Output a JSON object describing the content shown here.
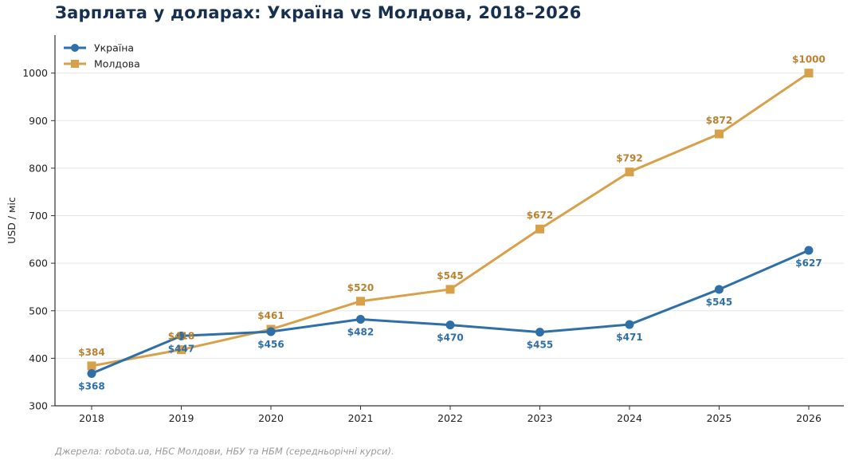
{
  "chart_data": {
    "type": "line",
    "title": "Зарплата у доларах: Україна vs Молдова, 2018–2026",
    "ylabel": "USD / міс",
    "xlabel": "",
    "categories": [
      "2018",
      "2019",
      "2020",
      "2021",
      "2022",
      "2023",
      "2024",
      "2025",
      "2026"
    ],
    "ylim": [
      300,
      1080
    ],
    "yticks": [
      300,
      400,
      500,
      600,
      700,
      800,
      900,
      1000
    ],
    "grid": "horizontal",
    "legend_position": "top-left",
    "series": [
      {
        "name": "Україна",
        "marker": "circle",
        "color": "#2e6fa8",
        "label_position": "below",
        "values": [
          368,
          447,
          456,
          482,
          470,
          455,
          471,
          545,
          627
        ],
        "labels": [
          "$368",
          "$447",
          "$456",
          "$482",
          "$470",
          "$455",
          "$471",
          "$545",
          "$627"
        ]
      },
      {
        "name": "Молдова",
        "marker": "square",
        "color": "#d9a04a",
        "label_color": "#b98231",
        "label_position": "above",
        "values": [
          384,
          418,
          461,
          520,
          545,
          672,
          792,
          872,
          1000
        ],
        "labels": [
          "$384",
          "$418",
          "$461",
          "$520",
          "$545",
          "$672",
          "$792",
          "$872",
          "$1000"
        ]
      }
    ],
    "source": "Джерела: robota.ua, НБС Молдови, НБУ та НБМ (середньорічні курси)."
  }
}
